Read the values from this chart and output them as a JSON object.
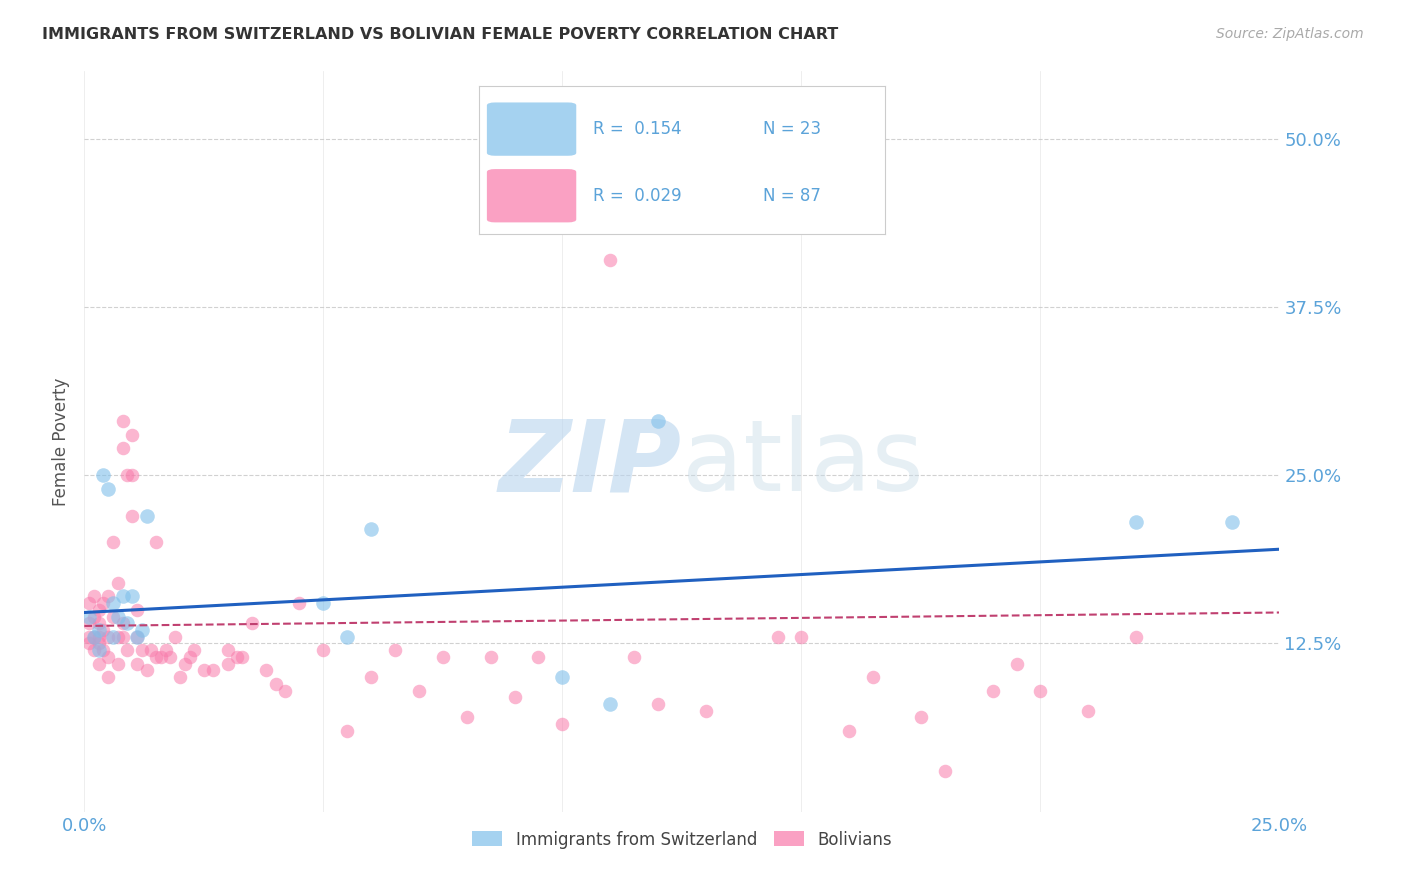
{
  "title": "IMMIGRANTS FROM SWITZERLAND VS BOLIVIAN FEMALE POVERTY CORRELATION CHART",
  "source": "Source: ZipAtlas.com",
  "ylabel": "Female Poverty",
  "ytick_labels": [
    "50.0%",
    "37.5%",
    "25.0%",
    "12.5%"
  ],
  "ytick_values": [
    0.5,
    0.375,
    0.25,
    0.125
  ],
  "xlim": [
    0.0,
    0.25
  ],
  "ylim": [
    0.0,
    0.55
  ],
  "color_swiss": "#7fbfea",
  "color_bolivia": "#f87aaa",
  "color_line_swiss": "#2060c0",
  "color_line_bolivia": "#c04070",
  "color_axis_text": "#5ba3d9",
  "swiss_points_x": [
    0.001,
    0.002,
    0.003,
    0.003,
    0.004,
    0.005,
    0.006,
    0.006,
    0.007,
    0.008,
    0.009,
    0.01,
    0.011,
    0.012,
    0.013,
    0.05,
    0.055,
    0.06,
    0.1,
    0.11,
    0.12,
    0.22,
    0.24
  ],
  "swiss_points_y": [
    0.145,
    0.13,
    0.135,
    0.12,
    0.25,
    0.24,
    0.13,
    0.155,
    0.145,
    0.16,
    0.14,
    0.16,
    0.13,
    0.135,
    0.22,
    0.155,
    0.13,
    0.21,
    0.1,
    0.08,
    0.29,
    0.215,
    0.215
  ],
  "bolivia_points_x": [
    0.001,
    0.001,
    0.001,
    0.001,
    0.002,
    0.002,
    0.002,
    0.002,
    0.003,
    0.003,
    0.003,
    0.003,
    0.003,
    0.004,
    0.004,
    0.004,
    0.005,
    0.005,
    0.005,
    0.005,
    0.006,
    0.006,
    0.007,
    0.007,
    0.007,
    0.008,
    0.008,
    0.008,
    0.008,
    0.009,
    0.009,
    0.01,
    0.01,
    0.01,
    0.011,
    0.011,
    0.011,
    0.012,
    0.013,
    0.014,
    0.015,
    0.015,
    0.016,
    0.017,
    0.018,
    0.019,
    0.02,
    0.021,
    0.022,
    0.023,
    0.025,
    0.027,
    0.03,
    0.03,
    0.032,
    0.033,
    0.035,
    0.038,
    0.04,
    0.042,
    0.045,
    0.05,
    0.055,
    0.06,
    0.065,
    0.07,
    0.075,
    0.08,
    0.085,
    0.09,
    0.095,
    0.1,
    0.11,
    0.115,
    0.12,
    0.13,
    0.145,
    0.15,
    0.16,
    0.165,
    0.175,
    0.18,
    0.19,
    0.195,
    0.2,
    0.21,
    0.22
  ],
  "bolivia_points_y": [
    0.13,
    0.14,
    0.125,
    0.155,
    0.13,
    0.145,
    0.12,
    0.16,
    0.13,
    0.125,
    0.14,
    0.11,
    0.15,
    0.12,
    0.135,
    0.155,
    0.13,
    0.1,
    0.115,
    0.16,
    0.145,
    0.2,
    0.17,
    0.13,
    0.11,
    0.14,
    0.13,
    0.29,
    0.27,
    0.12,
    0.25,
    0.22,
    0.25,
    0.28,
    0.11,
    0.13,
    0.15,
    0.12,
    0.105,
    0.12,
    0.115,
    0.2,
    0.115,
    0.12,
    0.115,
    0.13,
    0.1,
    0.11,
    0.115,
    0.12,
    0.105,
    0.105,
    0.11,
    0.12,
    0.115,
    0.115,
    0.14,
    0.105,
    0.095,
    0.09,
    0.155,
    0.12,
    0.06,
    0.1,
    0.12,
    0.09,
    0.115,
    0.07,
    0.115,
    0.085,
    0.115,
    0.065,
    0.41,
    0.115,
    0.08,
    0.075,
    0.13,
    0.13,
    0.06,
    0.1,
    0.07,
    0.03,
    0.09,
    0.11,
    0.09,
    0.075,
    0.13
  ],
  "swiss_trend_x": [
    0.0,
    0.25
  ],
  "swiss_trend_y": [
    0.148,
    0.195
  ],
  "bolivia_trend_x": [
    0.0,
    0.25
  ],
  "bolivia_trend_y": [
    0.138,
    0.148
  ]
}
